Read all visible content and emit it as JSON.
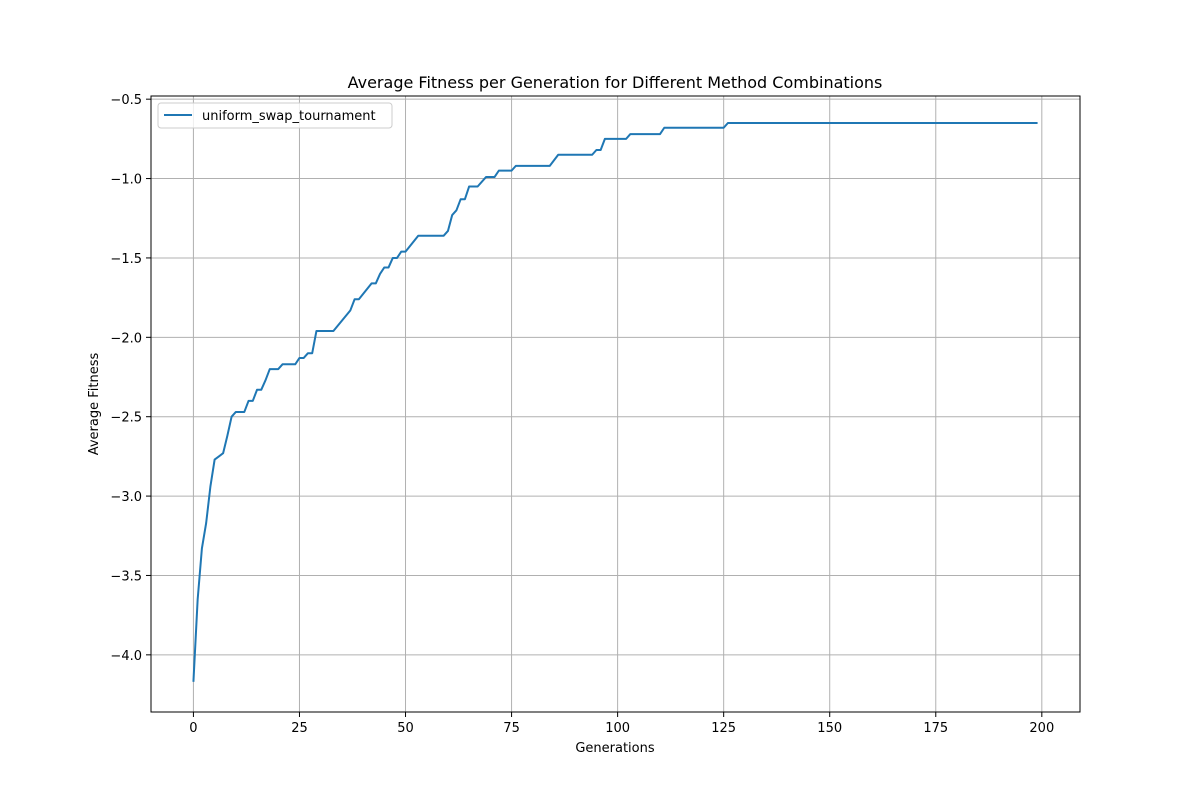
{
  "chart_data": {
    "type": "line",
    "title": "Average Fitness per Generation for Different Method Combinations",
    "xlabel": "Generations",
    "ylabel": "Average Fitness",
    "xlim": [
      -10,
      209
    ],
    "ylim": [
      -4.36,
      -0.48
    ],
    "xticks": [
      0,
      25,
      50,
      75,
      100,
      125,
      150,
      175,
      200
    ],
    "yticks": [
      -4.0,
      -3.5,
      -3.0,
      -2.5,
      -2.0,
      -1.5,
      -1.0,
      -0.5
    ],
    "xtick_labels": [
      "0",
      "25",
      "50",
      "75",
      "100",
      "125",
      "150",
      "175",
      "200"
    ],
    "ytick_labels": [
      "−4.0",
      "−3.5",
      "−3.0",
      "−2.5",
      "−2.0",
      "−1.5",
      "−1.0",
      "−0.5"
    ],
    "grid": true,
    "legend_position": "top-left",
    "series": [
      {
        "name": "uniform_swap_tournament",
        "color": "#1f77b4",
        "points": [
          [
            0,
            -4.17
          ],
          [
            1,
            -3.65
          ],
          [
            2,
            -3.33
          ],
          [
            3,
            -3.17
          ],
          [
            4,
            -2.94
          ],
          [
            5,
            -2.77
          ],
          [
            6,
            -2.75
          ],
          [
            7,
            -2.73
          ],
          [
            8,
            -2.62
          ],
          [
            9,
            -2.5
          ],
          [
            10,
            -2.47
          ],
          [
            12,
            -2.47
          ],
          [
            13,
            -2.4
          ],
          [
            14,
            -2.4
          ],
          [
            15,
            -2.33
          ],
          [
            16,
            -2.33
          ],
          [
            17,
            -2.27
          ],
          [
            18,
            -2.2
          ],
          [
            20,
            -2.2
          ],
          [
            21,
            -2.17
          ],
          [
            24,
            -2.17
          ],
          [
            25,
            -2.13
          ],
          [
            26,
            -2.13
          ],
          [
            27,
            -2.1
          ],
          [
            28,
            -2.1
          ],
          [
            29,
            -1.96
          ],
          [
            33,
            -1.96
          ],
          [
            37,
            -1.83
          ],
          [
            38,
            -1.76
          ],
          [
            39,
            -1.76
          ],
          [
            42,
            -1.66
          ],
          [
            43,
            -1.66
          ],
          [
            44,
            -1.6
          ],
          [
            45,
            -1.56
          ],
          [
            46,
            -1.56
          ],
          [
            47,
            -1.5
          ],
          [
            48,
            -1.5
          ],
          [
            49,
            -1.46
          ],
          [
            50,
            -1.46
          ],
          [
            53,
            -1.36
          ],
          [
            59,
            -1.36
          ],
          [
            60,
            -1.33
          ],
          [
            61,
            -1.23
          ],
          [
            62,
            -1.2
          ],
          [
            63,
            -1.13
          ],
          [
            64,
            -1.13
          ],
          [
            65,
            -1.05
          ],
          [
            67,
            -1.05
          ],
          [
            69,
            -0.99
          ],
          [
            71,
            -0.99
          ],
          [
            72,
            -0.95
          ],
          [
            75,
            -0.95
          ],
          [
            76,
            -0.92
          ],
          [
            84,
            -0.92
          ],
          [
            86,
            -0.85
          ],
          [
            94,
            -0.85
          ],
          [
            95,
            -0.82
          ],
          [
            96,
            -0.82
          ],
          [
            97,
            -0.75
          ],
          [
            102,
            -0.75
          ],
          [
            103,
            -0.72
          ],
          [
            110,
            -0.72
          ],
          [
            111,
            -0.68
          ],
          [
            125,
            -0.68
          ],
          [
            126,
            -0.65
          ],
          [
            199,
            -0.65
          ]
        ]
      }
    ]
  }
}
